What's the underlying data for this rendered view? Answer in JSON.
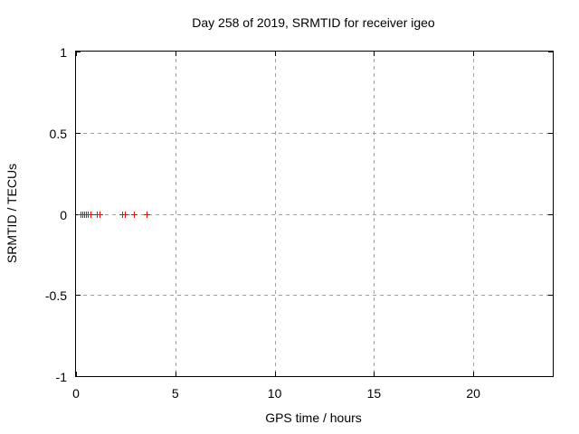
{
  "chart_data": {
    "type": "scatter",
    "title": "Day 258 of 2019, SRMTID for receiver igeo",
    "xlabel": "GPS time / hours",
    "ylabel": "SRMTID / TECUs",
    "xlim": [
      0,
      24
    ],
    "ylim": [
      -1,
      1
    ],
    "xticks": [
      0,
      5,
      10,
      15,
      20
    ],
    "yticks": [
      1,
      0.5,
      0,
      -0.5,
      -1
    ],
    "grid": true,
    "legend": "none",
    "marker": "plus",
    "marker_color": "#ff0000",
    "grid_color": "#a0a0a0",
    "axis_color": "#000000",
    "background_color": "#ffffff",
    "series": [
      {
        "name": "SRMTID",
        "x": [
          0.23,
          0.34,
          0.43,
          0.52,
          0.61,
          0.73,
          1.07,
          1.2,
          2.32,
          2.45,
          2.93,
          3.57
        ],
        "y": [
          0,
          0,
          0,
          0,
          0,
          0,
          0,
          0,
          0,
          0,
          0,
          0
        ]
      }
    ]
  }
}
